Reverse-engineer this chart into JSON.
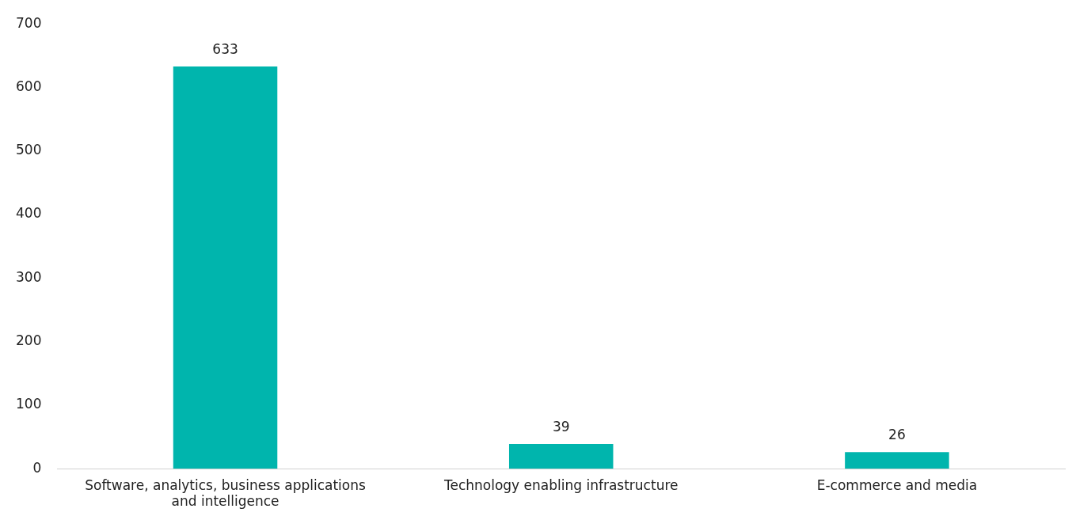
{
  "chart_data": {
    "type": "bar",
    "categories": [
      "Software, analytics, business applications and intelligence",
      "Technology enabling infrastructure",
      "E-commerce and media"
    ],
    "values": [
      633,
      39,
      26
    ],
    "color": "#00b5ad",
    "ylim": [
      0,
      700
    ],
    "yticks": [
      0,
      100,
      200,
      300,
      400,
      500,
      600,
      700
    ],
    "grid": false,
    "legend": false,
    "data_labels": true
  }
}
